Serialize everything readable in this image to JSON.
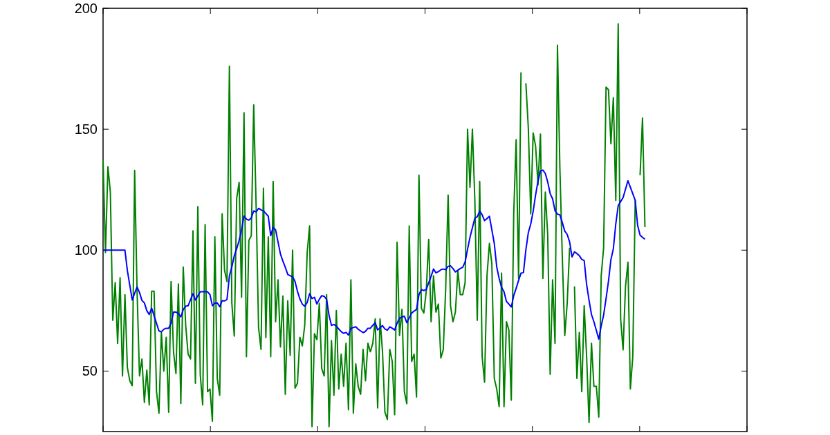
{
  "chart_data": {
    "type": "line",
    "categories": [
      null,
      null,
      null,
      null,
      null,
      null,
      null,
      null,
      null,
      null,
      null,
      null,
      null,
      null,
      null,
      null,
      null,
      null,
      null,
      null,
      null,
      null,
      null,
      null,
      null,
      null,
      null,
      null,
      null,
      null,
      null,
      null,
      null,
      null,
      null,
      null,
      null,
      null,
      null,
      null,
      null,
      null,
      null,
      null,
      null,
      null,
      null,
      null,
      null,
      null,
      null,
      null,
      null,
      null,
      null,
      null,
      null,
      null,
      null,
      null,
      null,
      null,
      null,
      null,
      null,
      null,
      null,
      null,
      null,
      null,
      null,
      null,
      null,
      null,
      null,
      null,
      null,
      null,
      null,
      null,
      null,
      null,
      null,
      null,
      null,
      null,
      null,
      null,
      null,
      null,
      null,
      null,
      null,
      null,
      null,
      null,
      null,
      null,
      null,
      null,
      null,
      null,
      null,
      null,
      null,
      null,
      null,
      null,
      null,
      null,
      null,
      null,
      null,
      null,
      null,
      null,
      null,
      null,
      null,
      null,
      null,
      null,
      null,
      null,
      null,
      null,
      null,
      null,
      null,
      null,
      null,
      null,
      null,
      null,
      null,
      null,
      null,
      null,
      null,
      null,
      null,
      null,
      null,
      null,
      null,
      null,
      null,
      null,
      null,
      null,
      null,
      null,
      null,
      null,
      null,
      null,
      null,
      null,
      null,
      null,
      null,
      null,
      null,
      null,
      null,
      null,
      null,
      null,
      null,
      null,
      null,
      null,
      null,
      null,
      null,
      null,
      null,
      null,
      null,
      null,
      null,
      null,
      null,
      null,
      null,
      null,
      null,
      null,
      null,
      null,
      null,
      null,
      null,
      null,
      null,
      null,
      null,
      null,
      null,
      null,
      null,
      null,
      null,
      null,
      null,
      null,
      null,
      null,
      null,
      null,
      null,
      null,
      null,
      null,
      null,
      null,
      null,
      null,
      null,
      null,
      null,
      null,
      null,
      null,
      null,
      null,
      null,
      null,
      null,
      null,
      null,
      null,
      null,
      null,
      null,
      null,
      null,
      null,
      null,
      null,
      null,
      null,
      null,
      null,
      null,
      null,
      null,
      null,
      null,
      null,
      null,
      null,
      null,
      null,
      null,
      null,
      null,
      null,
      null,
      null,
      null,
      null,
      null,
      null,
      null,
      null
    ],
    "ylim": [
      25,
      200
    ],
    "yticks": [
      50,
      100,
      150,
      200
    ],
    "tick_labels": "y",
    "series": [
      {
        "color": "#008000",
        "values": [
          137.3,
          99,
          134.5,
          124,
          71,
          86.6,
          61.5,
          88.6,
          48,
          81.6,
          51.5,
          46,
          44,
          133,
          83,
          48,
          55,
          37,
          50.4,
          36,
          83,
          83,
          41.5,
          32.6,
          66,
          50,
          64,
          33,
          87,
          58,
          49,
          86,
          36.6,
          93,
          69,
          57,
          55,
          108,
          45,
          118,
          48.5,
          36,
          110.6,
          41.5,
          42.6,
          29.3,
          105.5,
          47,
          40,
          115,
          91.6,
          87,
          176,
          78,
          64.5,
          121.5,
          128,
          80.5,
          156.8,
          56,
          104,
          106,
          160,
          118,
          68,
          59,
          125.6,
          63.8,
          105.5,
          56,
          128.4,
          70.4,
          87.7,
          60,
          81,
          40.4,
          79,
          56.5,
          100,
          43,
          45,
          64,
          60.4,
          69,
          99,
          110,
          27,
          65.5,
          63,
          78,
          51,
          48,
          81.6,
          27,
          62.6,
          40,
          75,
          42.6,
          57,
          43.7,
          61.5,
          34,
          87.7,
          32.6,
          53,
          43.7,
          40.4,
          59,
          46,
          61.5,
          58,
          61.5,
          71.6,
          34.8,
          71.6,
          58,
          33,
          30,
          59,
          54,
          32,
          103.3,
          64.7,
          75.5,
          41.5,
          36.5,
          110,
          54,
          57,
          39.3,
          131,
          76,
          74,
          83,
          104.4,
          70.4,
          89.4,
          74.4,
          77.7,
          55.4,
          58.8,
          84,
          122.8,
          77,
          70.4,
          74.4,
          91.6,
          81.6,
          81.6,
          86.6,
          150,
          126,
          150,
          120.6,
          71,
          128.4,
          56,
          45.4,
          89.4,
          102.8,
          94.4,
          47,
          42.6,
          35.3,
          90.5,
          35.3,
          70.4,
          67,
          38,
          115,
          145.7,
          88.3,
          173.5,
          null,
          169,
          150.7,
          115,
          148.5,
          143,
          127,
          148,
          88.3,
          124,
          106,
          48.7,
          87.7,
          61.5,
          184.7,
          134,
          97,
          64.7,
          78,
          101,
          null,
          85,
          47,
          66,
          41.5,
          77,
          56,
          28.7,
          61.5,
          43.7,
          43.7,
          31,
          89.4,
          101,
          167.4,
          166.3,
          144,
          163,
          120.6,
          193.6,
          71.6,
          58.8,
          85,
          95,
          42.6,
          56,
          120.6,
          null,
          131,
          154.6,
          109.5,
          null,
          null,
          null,
          null,
          null,
          null,
          null,
          null,
          null,
          null,
          null,
          null,
          null,
          null,
          null,
          null,
          null,
          null,
          null,
          null,
          null,
          null,
          null,
          null,
          null,
          null,
          null,
          null,
          null,
          null,
          null,
          null,
          null,
          null,
          null,
          null,
          null,
          null,
          null,
          null,
          null,
          null
        ]
      },
      {
        "color": "#0000ff",
        "values": [
          100,
          100,
          100,
          100,
          100,
          100,
          100,
          100,
          100,
          100,
          91.6,
          85.5,
          79.4,
          82.2,
          84.8,
          82.5,
          79.2,
          78.2,
          75,
          73.4,
          76,
          72.9,
          69.7,
          66.6,
          66.2,
          67.3,
          67.7,
          67.7,
          69.9,
          74.4,
          74.4,
          73.8,
          72.4,
          75.4,
          76.8,
          77,
          79.5,
          82,
          79.4,
          81.1,
          82.8,
          82.8,
          82.8,
          82.8,
          81.6,
          77,
          78.1,
          78.2,
          76.6,
          79.1,
          79,
          79.6,
          89.4,
          93.1,
          97.7,
          100.6,
          104,
          108.4,
          114.1,
          112.8,
          112.4,
          113.3,
          116.2,
          115.8,
          117.3,
          116.7,
          116.2,
          115.1,
          114,
          106,
          109.4,
          108.4,
          103.4,
          98.4,
          95.5,
          92.9,
          90,
          89.4,
          89,
          87,
          83,
          79.8,
          77.7,
          76.8,
          78.3,
          82,
          80,
          80.5,
          77.7,
          79.7,
          81.2,
          80.9,
          79.6,
          73,
          68.9,
          69.3,
          68.6,
          67.4,
          66.3,
          65.6,
          66,
          64.9,
          67.7,
          68,
          68.3,
          67.3,
          66.6,
          65.9,
          66.4,
          67.7,
          67.7,
          68.9,
          70,
          67,
          67.9,
          68.8,
          67.4,
          66.9,
          68.3,
          67.7,
          67,
          69.8,
          71.9,
          72.3,
          72.7,
          70,
          72,
          74,
          74.8,
          75.5,
          81.6,
          83.7,
          83.3,
          83.7,
          86.5,
          89.2,
          92.2,
          90.6,
          91.1,
          91.9,
          92.2,
          91.9,
          93.3,
          93.5,
          92.4,
          91,
          91.7,
          92.4,
          92.9,
          95.1,
          100.4,
          105.3,
          109.3,
          113.2,
          113.8,
          116.2,
          114.6,
          112.2,
          113.1,
          114,
          108.4,
          102.8,
          93.1,
          88.3,
          84.6,
          82.8,
          78.8,
          77.7,
          76.5,
          81.2,
          84.2,
          87.5,
          90.5,
          90.7,
          100.1,
          107.2,
          110.8,
          116.1,
          122.8,
          128.6,
          132.7,
          133.1,
          131.7,
          128.1,
          123.4,
          121.2,
          116.3,
          114.9,
          114.6,
          111.4,
          107.9,
          106.5,
          103.4,
          97.2,
          99.3,
          98.6,
          97.7,
          96.2,
          95.7,
          85.8,
          79.3,
          73.4,
          70.4,
          66.8,
          63.2,
          68.7,
          73.2,
          80,
          87.2,
          96.1,
          100.6,
          110.8,
          118.4,
          120.1,
          121.7,
          125.2,
          128.7,
          126,
          123.3,
          120.6,
          110.2,
          106.2,
          105.3,
          104.5,
          null,
          null,
          null,
          null,
          null,
          null,
          null,
          null,
          null,
          null,
          null,
          null,
          null,
          null,
          null,
          null,
          null,
          null,
          null,
          null,
          null,
          null,
          null,
          null,
          null,
          null,
          null,
          null,
          null,
          null,
          null,
          null,
          null,
          null,
          null,
          null,
          null,
          null,
          null,
          null,
          null,
          null
        ]
      }
    ]
  }
}
